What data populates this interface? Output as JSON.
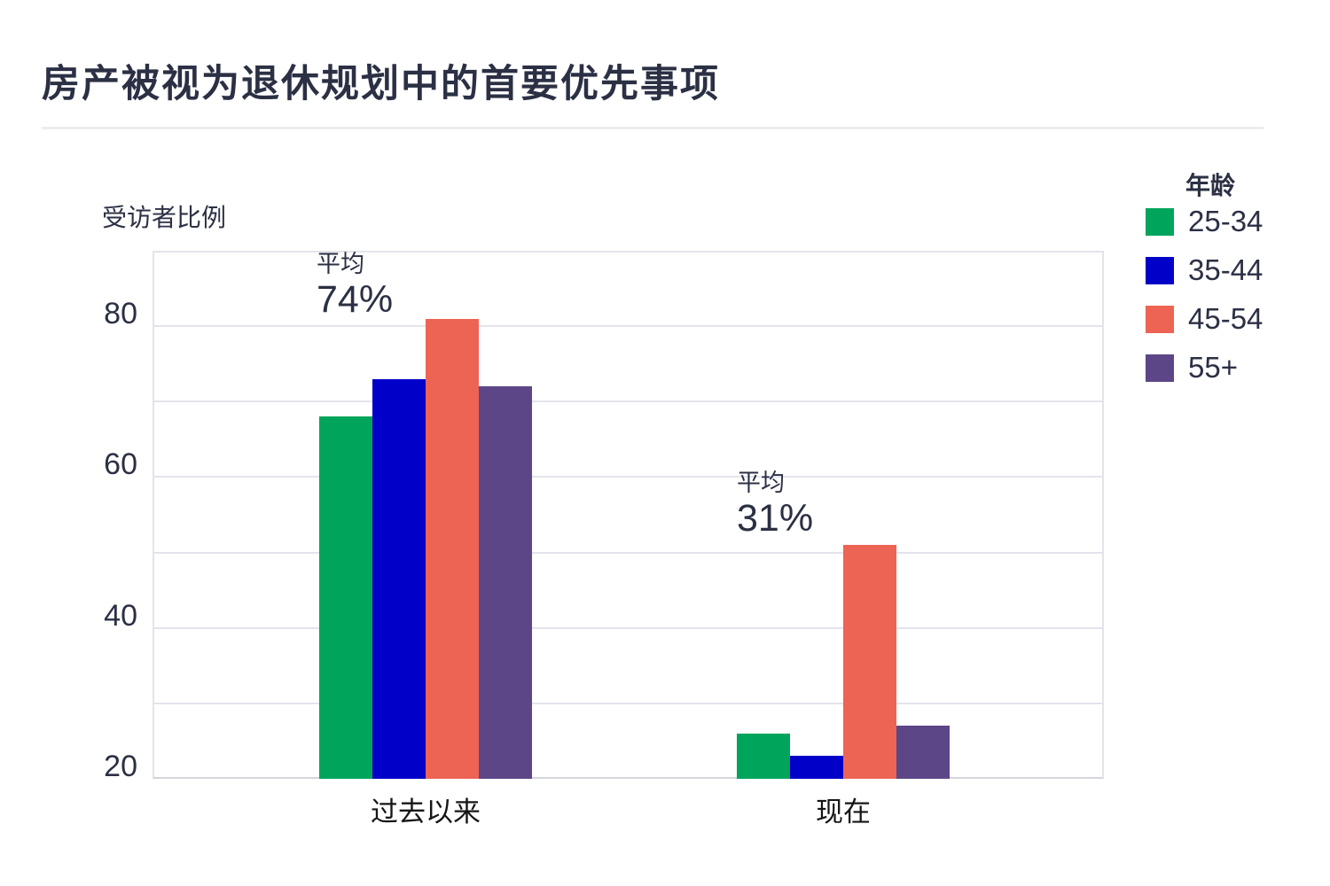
{
  "page": {
    "title": "房产被视为退休规划中的首要优先事项"
  },
  "chart": {
    "axis_title": "受访者比例",
    "y_ticks": [
      "80",
      "60",
      "40",
      "20"
    ],
    "legend": {
      "title": "年龄",
      "items": [
        {
          "label": "25-34",
          "color": "#00a55c"
        },
        {
          "label": "35-44",
          "color": "#0000c8"
        },
        {
          "label": "45-54",
          "color": "#ed6455"
        },
        {
          "label": "55+",
          "color": "#5d4688"
        }
      ]
    },
    "annotations": [
      {
        "prefix": "平均",
        "value": "74%"
      },
      {
        "prefix": "平均",
        "value": "31%"
      }
    ]
  },
  "chart_data": {
    "type": "bar",
    "title": "房产被视为退休规划中的首要优先事项",
    "categories": [
      "过去以来",
      "现在"
    ],
    "series": [
      {
        "name": "25-34",
        "color": "#00a55c",
        "values": [
          68,
          26
        ]
      },
      {
        "name": "35-44",
        "color": "#0000c8",
        "values": [
          73,
          23
        ]
      },
      {
        "name": "45-54",
        "color": "#ed6455",
        "values": [
          81,
          51
        ]
      },
      {
        "name": "55+",
        "color": "#5d4688",
        "values": [
          72,
          27
        ]
      }
    ],
    "group_averages": [
      "74%",
      "31%"
    ],
    "xlabel": "",
    "ylabel": "受访者比例",
    "ylim": [
      20,
      90
    ],
    "grid_step": 10,
    "tick_step": 20,
    "grid": true,
    "legend_position": "right",
    "legend_title": "年龄",
    "colors": {
      "text_dark": "#2b3044",
      "gridline": "#e3e4eb",
      "axis_line": "#d4d6dc",
      "separator": "#ececec",
      "background": "#ffffff"
    }
  }
}
